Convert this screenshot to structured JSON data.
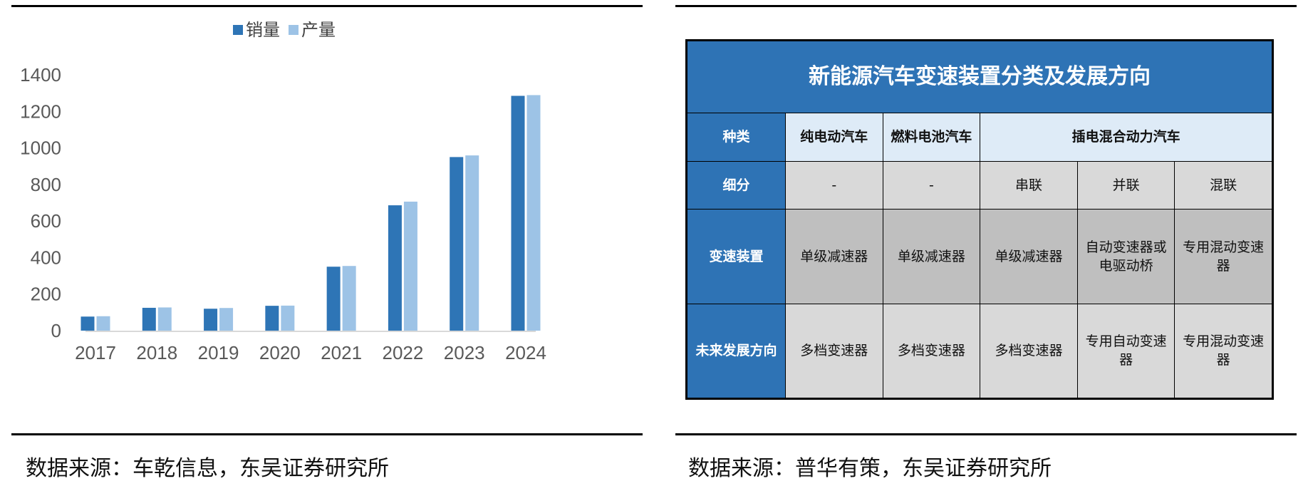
{
  "chart_data": {
    "type": "bar",
    "categories": [
      "2017",
      "2018",
      "2019",
      "2020",
      "2021",
      "2022",
      "2023",
      "2024"
    ],
    "series": [
      {
        "name": "销量",
        "color": "#2e75b6",
        "values": [
          77,
          125,
          120,
          136,
          350,
          686,
          950,
          1285
        ]
      },
      {
        "name": "产量",
        "color": "#9dc3e6",
        "values": [
          79,
          127,
          124,
          137,
          354,
          706,
          959,
          1289
        ]
      }
    ],
    "ylim": [
      0,
      1400
    ],
    "yticks": [
      0,
      200,
      400,
      600,
      800,
      1000,
      1200,
      1400
    ],
    "legend": "top-center",
    "grid": false
  },
  "left_source": "数据来源：车乾信息，东吴证券研究所",
  "right_source": "数据来源：普华有策，东吴证券研究所",
  "table": {
    "title": "新能源汽车变速装置分类及发展方向",
    "row_headers": [
      "种类",
      "细分",
      "变速装置",
      "未来发展方向"
    ],
    "types": [
      "纯电动汽车",
      "燃料电池汽车",
      "插电混合动力汽车"
    ],
    "subtypes": [
      "-",
      "-",
      "串联",
      "并联",
      "混联"
    ],
    "devices": [
      "单级减速器",
      "单级减速器",
      "单级减速器",
      "自动变速器或电驱动桥",
      "专用混动变速器"
    ],
    "future": [
      "多档变速器",
      "多档变速器",
      "多档变速器",
      "专用自动变速器",
      "专用混动变速器"
    ]
  }
}
